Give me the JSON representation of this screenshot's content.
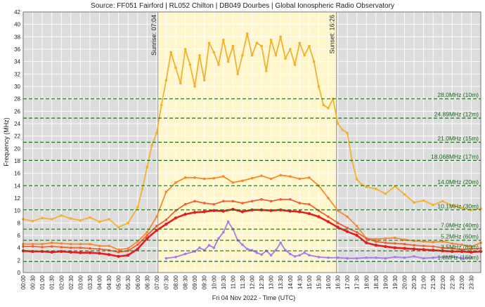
{
  "chart_data": {
    "type": "line",
    "title": "Source: FF051 Fairford | RL052 Chilton | DB049 Dourbes | Global Ionospheric Radio Observatory",
    "xlabel": "Fri 04 Nov 2022 - Time (UTC)",
    "ylabel": "Frequency (MHz)",
    "ylim": [
      0,
      42
    ],
    "yticks": [
      0,
      2,
      4,
      6,
      8,
      10,
      12,
      14,
      16,
      18,
      20,
      22,
      24,
      26,
      28,
      30,
      32,
      34,
      36,
      38,
      40,
      42
    ],
    "xlim_hours": [
      0,
      24
    ],
    "xticks": [
      "00:00",
      "00:30",
      "01:00",
      "01:30",
      "02:00",
      "02:30",
      "03:00",
      "03:30",
      "04:00",
      "04:30",
      "05:00",
      "05:30",
      "06:00",
      "06:30",
      "07:00",
      "07:30",
      "08:00",
      "08:30",
      "09:00",
      "09:30",
      "10:00",
      "10:30",
      "11:00",
      "11:30",
      "12:00",
      "12:30",
      "13:00",
      "13:30",
      "14:00",
      "14:30",
      "15:00",
      "15:30",
      "16:00",
      "16:30",
      "17:00",
      "17:30",
      "18:00",
      "18:30",
      "19:00",
      "19:30",
      "20:00",
      "20:30",
      "21:00",
      "21:30",
      "22:00",
      "22:30",
      "23:00",
      "23:30"
    ],
    "grid": true,
    "daylight": {
      "sunrise_hour": 7.07,
      "sunset_hour": 16.43,
      "sunrise_label": "Sunrise: 07:04",
      "sunset_label": "Sunset: 16:26",
      "day_color": "#fff6cc",
      "night_color": "#dddddd"
    },
    "bands": [
      {
        "freq": 28.0,
        "label": "28.0MHz (10m)"
      },
      {
        "freq": 24.89,
        "label": "24.89MHz (12m)"
      },
      {
        "freq": 21.0,
        "label": "21.0MHz (15m)"
      },
      {
        "freq": 18.068,
        "label": "18.068MHz (17m)"
      },
      {
        "freq": 14.0,
        "label": "14.0MHz (20m)"
      },
      {
        "freq": 10.1,
        "label": "10.1MHz (30m)"
      },
      {
        "freq": 7.0,
        "label": "7.0MHz (40m)"
      },
      {
        "freq": 5.2,
        "label": "5.2MHz (60m)"
      },
      {
        "freq": 3.5,
        "label": "3.5MHz (80m)"
      },
      {
        "freq": 1.8,
        "label": "1.8MHz (160m)"
      }
    ],
    "band_color": "#0a7a0a",
    "series": [
      {
        "color": "#f5b02e",
        "x": [
          0,
          0.5,
          1,
          1.5,
          2,
          2.5,
          3,
          3.5,
          4,
          4.5,
          5,
          5.5,
          6,
          6.25,
          6.5,
          6.75,
          7,
          7.25,
          7.5,
          7.75,
          8,
          8.25,
          8.5,
          8.75,
          9,
          9.25,
          9.5,
          9.75,
          10,
          10.25,
          10.5,
          10.75,
          11,
          11.25,
          11.5,
          11.75,
          12,
          12.25,
          12.5,
          12.75,
          13,
          13.25,
          13.5,
          13.75,
          14,
          14.25,
          14.5,
          14.75,
          15,
          15.25,
          15.5,
          15.75,
          16,
          16.25,
          16.5,
          16.75,
          17,
          17.25,
          17.5,
          17.75,
          18,
          18.5,
          19,
          19.5,
          20,
          20.5,
          21,
          21.5,
          22,
          22.5,
          23,
          23.5,
          24
        ],
        "y": [
          8.6,
          8.3,
          8.8,
          8.6,
          9.2,
          8.7,
          8.4,
          8.9,
          8.2,
          8.6,
          7.3,
          8.0,
          10.5,
          13.5,
          17.0,
          20.5,
          22.5,
          27.0,
          31.0,
          35.5,
          33.0,
          30.5,
          36.0,
          33.5,
          30.0,
          35.0,
          31.0,
          37.0,
          35.5,
          33.5,
          37.5,
          34.0,
          36.5,
          32.0,
          35.0,
          38.5,
          35.0,
          37.0,
          36.5,
          32.5,
          37.5,
          35.0,
          38.0,
          34.5,
          36.0,
          33.5,
          37.0,
          35.0,
          36.5,
          34.0,
          30.0,
          27.0,
          26.5,
          28.0,
          24.0,
          23.0,
          22.5,
          18.0,
          15.0,
          14.2,
          13.8,
          13.5,
          12.7,
          13.9,
          12.6,
          11.3,
          11.6,
          10.9,
          11.5,
          10.8,
          10.4,
          10.1,
          10.3
        ]
      },
      {
        "color": "#f58a2e",
        "x": [
          0,
          0.5,
          1,
          1.5,
          2,
          2.5,
          3,
          3.5,
          4,
          4.5,
          5,
          5.5,
          6,
          6.5,
          7,
          7.5,
          8,
          8.5,
          9,
          9.5,
          10,
          10.5,
          11,
          11.5,
          12,
          12.5,
          13,
          13.5,
          14,
          14.5,
          15,
          15.5,
          16,
          16.5,
          17,
          17.5,
          18,
          18.5,
          19,
          19.5,
          20,
          20.5,
          21,
          21.5,
          22,
          22.5,
          23,
          23.5,
          24
        ],
        "y": [
          4.6,
          4.6,
          4.6,
          4.8,
          4.7,
          4.6,
          4.6,
          4.6,
          4.3,
          4.3,
          3.7,
          3.9,
          5.0,
          6.5,
          9.0,
          13.0,
          14.5,
          15.3,
          15.3,
          15.1,
          15.2,
          15.5,
          14.5,
          14.8,
          15.2,
          15.6,
          15.1,
          15.7,
          15.5,
          15.1,
          15.3,
          14.0,
          12.0,
          10.0,
          9.0,
          7.5,
          5.5,
          5.4,
          5.5,
          5.6,
          5.3,
          5.1,
          5.0,
          4.9,
          5.0,
          4.7,
          4.5,
          4.2,
          4.8
        ]
      },
      {
        "color": "#ee6235",
        "x": [
          0,
          0.5,
          1,
          1.5,
          2,
          2.5,
          3,
          3.5,
          4,
          4.5,
          5,
          5.5,
          6,
          6.5,
          7,
          7.5,
          8,
          8.5,
          9,
          9.5,
          10,
          10.5,
          11,
          11.5,
          12,
          12.5,
          13,
          13.5,
          14,
          14.5,
          15,
          15.5,
          16,
          16.5,
          17,
          17.5,
          18,
          18.5,
          19,
          19.5,
          20,
          20.5,
          21,
          21.5,
          22,
          22.5,
          23,
          23.5,
          24
        ],
        "y": [
          4.2,
          4.2,
          4.1,
          4.2,
          4.1,
          4.0,
          4.0,
          3.9,
          3.8,
          3.6,
          3.3,
          3.5,
          4.5,
          6.0,
          7.5,
          8.5,
          10.0,
          11.0,
          11.5,
          11.2,
          11.0,
          11.5,
          11.5,
          11.2,
          11.5,
          11.8,
          11.5,
          11.8,
          11.8,
          11.2,
          11.0,
          10.0,
          9.0,
          8.0,
          7.2,
          6.5,
          5.5,
          5.0,
          4.8,
          4.7,
          4.6,
          4.4,
          4.3,
          4.2,
          4.0,
          3.9,
          3.7,
          3.8,
          3.9
        ]
      },
      {
        "color": "#e81e1e",
        "x": [
          0,
          0.5,
          1,
          1.5,
          2,
          2.5,
          3,
          3.5,
          4,
          4.5,
          5,
          5.5,
          6,
          6.5,
          7,
          7.5,
          8,
          8.5,
          9,
          9.5,
          10,
          10.5,
          11,
          11.5,
          12,
          12.5,
          13,
          13.5,
          14,
          14.5,
          15,
          15.5,
          16,
          16.5,
          17,
          17.5,
          18,
          18.5,
          19,
          19.5,
          20,
          20.5,
          21,
          21.5,
          22,
          22.5,
          23,
          23.5,
          24
        ],
        "y": [
          3.5,
          3.4,
          3.4,
          3.3,
          3.4,
          3.3,
          3.2,
          3.2,
          3.1,
          2.9,
          2.6,
          2.8,
          3.8,
          5.5,
          6.8,
          7.8,
          8.8,
          9.4,
          9.7,
          9.8,
          10.0,
          9.9,
          10.2,
          9.8,
          10.1,
          10.1,
          10.0,
          10.1,
          9.9,
          9.8,
          9.5,
          9.0,
          8.2,
          7.3,
          6.6,
          6.0,
          4.8,
          4.4,
          4.2,
          4.0,
          3.9,
          3.8,
          3.7,
          3.6,
          3.5,
          3.4,
          3.4,
          3.3,
          3.4
        ]
      },
      {
        "color": "#a77be8",
        "x": [
          7.5,
          8,
          8.5,
          9,
          9.25,
          9.5,
          9.75,
          10,
          10.25,
          10.5,
          10.75,
          11,
          11.25,
          11.5,
          11.75,
          12,
          12.25,
          12.5,
          12.75,
          13,
          13.25,
          13.5,
          13.75,
          14,
          14.25,
          14.5,
          14.75,
          15,
          15.5,
          16,
          16.5,
          17,
          17.5,
          18,
          18.5,
          19,
          19.5,
          20,
          20.5,
          21,
          21.5,
          22,
          22.5,
          23,
          23.5
        ],
        "y": [
          2.3,
          2.5,
          3.0,
          3.4,
          4.0,
          3.6,
          4.4,
          4.0,
          5.5,
          6.5,
          8.2,
          7.0,
          5.2,
          4.5,
          3.8,
          3.6,
          3.2,
          2.9,
          3.5,
          2.8,
          3.6,
          4.8,
          3.6,
          3.0,
          2.6,
          2.8,
          3.2,
          2.8,
          2.5,
          2.4,
          2.4,
          2.3,
          2.3,
          2.4,
          2.4,
          2.3,
          2.5,
          2.4,
          2.6,
          2.3,
          2.4,
          2.5,
          2.6,
          2.3,
          2.4
        ]
      }
    ]
  }
}
